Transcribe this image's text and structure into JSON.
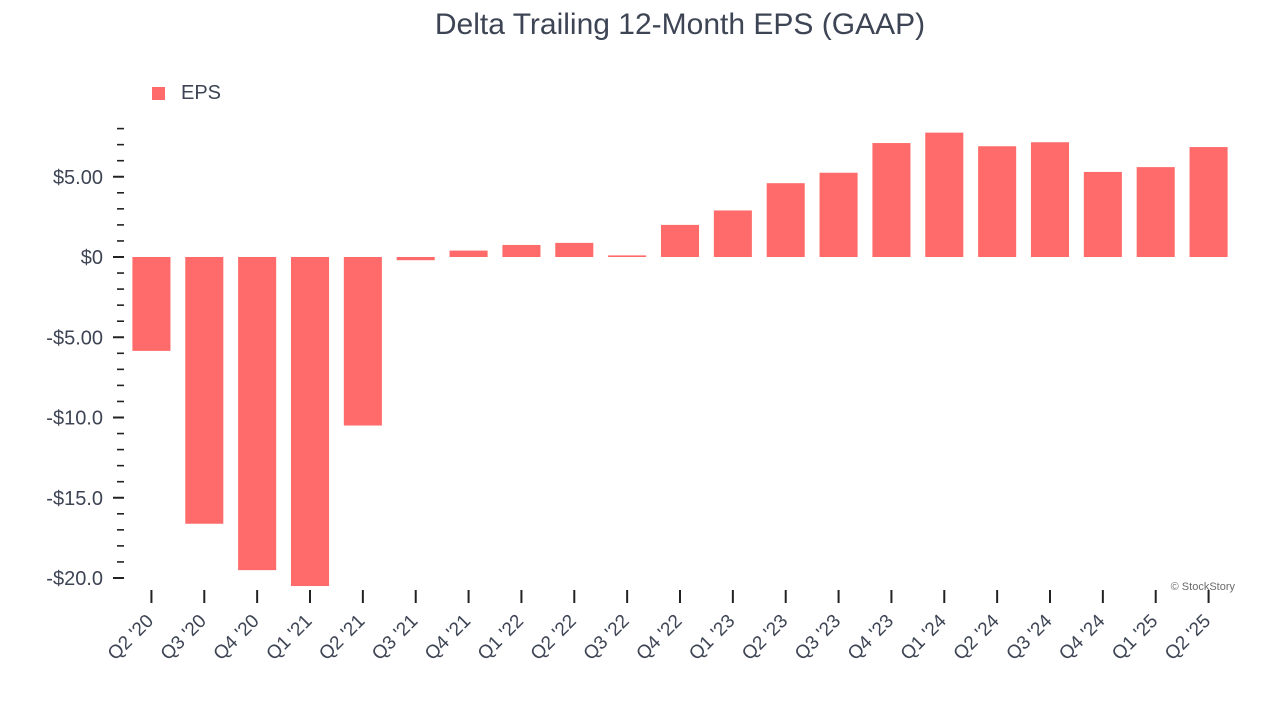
{
  "chart_data": {
    "type": "bar",
    "title": "Delta Trailing 12-Month EPS (GAAP)",
    "xlabel": "",
    "ylabel": "",
    "categories": [
      "Q2 '20",
      "Q3 '20",
      "Q4 '20",
      "Q1 '21",
      "Q2 '21",
      "Q3 '21",
      "Q4 '21",
      "Q1 '22",
      "Q2 '22",
      "Q3 '22",
      "Q4 '22",
      "Q1 '23",
      "Q2 '23",
      "Q3 '23",
      "Q4 '23",
      "Q1 '24",
      "Q2 '24",
      "Q3 '24",
      "Q4 '24",
      "Q1 '25",
      "Q2 '25"
    ],
    "series": [
      {
        "name": "EPS",
        "color": "#ff6b6b",
        "values": [
          -5.85,
          -16.62,
          -19.51,
          -20.5,
          -10.5,
          -0.2,
          0.4,
          0.75,
          0.88,
          0.1,
          2.0,
          2.9,
          4.6,
          5.25,
          7.1,
          7.75,
          6.9,
          7.15,
          5.3,
          5.6,
          6.85
        ]
      }
    ],
    "ylim": [
      -20.9,
      8.0
    ],
    "yticks": [
      {
        "value": 5,
        "label": "$5.00"
      },
      {
        "value": 0,
        "label": "$0"
      },
      {
        "value": -5,
        "label": "-$5.00"
      },
      {
        "value": -10,
        "label": "-$10.0"
      },
      {
        "value": -15,
        "label": "-$15.0"
      },
      {
        "value": -20,
        "label": "-$20.0"
      }
    ],
    "minor_tick_step": 1,
    "grid": false,
    "legend_position": "top-left"
  },
  "watermark": "© StockStory"
}
